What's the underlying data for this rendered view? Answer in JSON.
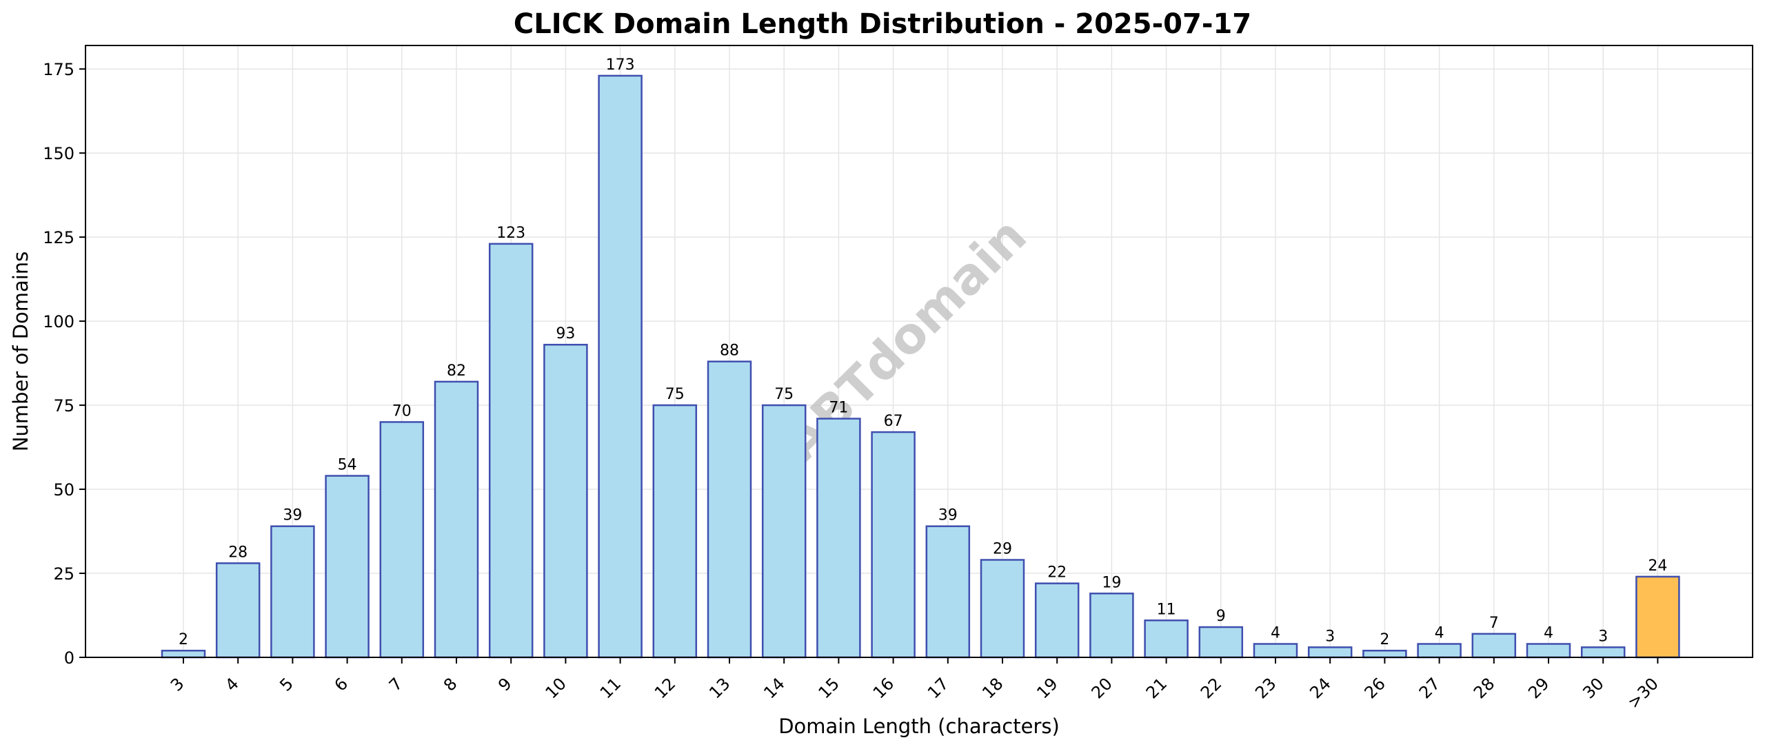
{
  "chart_data": {
    "type": "bar",
    "title": "CLICK Domain Length Distribution - 2025-07-17",
    "xlabel": "Domain Length (characters)",
    "ylabel": "Number of Domains",
    "categories": [
      "3",
      "4",
      "5",
      "6",
      "7",
      "8",
      "9",
      "10",
      "11",
      "12",
      "13",
      "14",
      "15",
      "16",
      "17",
      "18",
      "19",
      "20",
      "21",
      "22",
      "23",
      "24",
      "26",
      "27",
      "28",
      "29",
      "30",
      ">30"
    ],
    "values": [
      2,
      28,
      39,
      54,
      70,
      82,
      123,
      93,
      173,
      75,
      88,
      75,
      71,
      67,
      39,
      29,
      22,
      19,
      11,
      9,
      4,
      3,
      2,
      4,
      7,
      4,
      3,
      24
    ],
    "ylim": [
      0,
      182
    ],
    "yticks": [
      0,
      25,
      50,
      75,
      100,
      125,
      150,
      175
    ],
    "grid": true,
    "colors": {
      "bar": "#ADDCF0",
      "bar_edge": "#3F4FAF",
      "highlight_bar": "#FFBF52",
      "highlight_edge": "#3F4FAF",
      "grid": "#E5E5E5"
    },
    "highlight_category": ">30",
    "watermark": "ABTdomain"
  }
}
